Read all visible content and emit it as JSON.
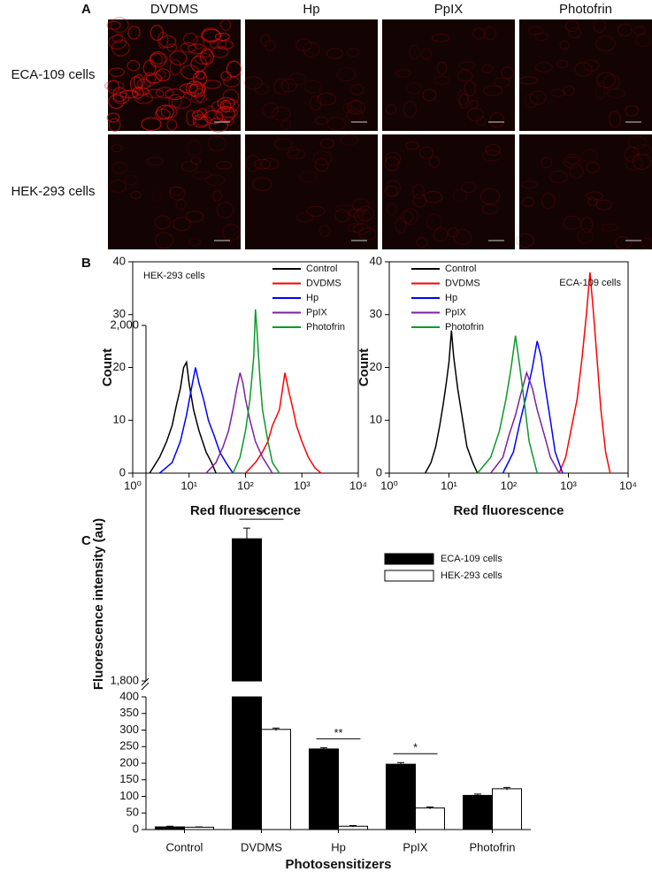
{
  "panel_labels": {
    "a": "A",
    "b": "B",
    "c": "C"
  },
  "panel_a": {
    "columns": [
      "DVDMS",
      "Hp",
      "PpIX",
      "Photofrin"
    ],
    "rows": [
      "ECA-109 cells",
      "HEK-293 cells"
    ]
  },
  "chart_data": [
    {
      "type": "line",
      "annotation": "HEK-293 cells",
      "xlabel": "Red fluorescence",
      "ylabel": "Count",
      "xscale": "log",
      "legend": "upper right",
      "xlim": [
        1,
        10000
      ],
      "ylim": [
        0,
        40
      ],
      "xticks": [
        {
          "value": 1,
          "label": "10⁰"
        },
        {
          "value": 10,
          "label": "10¹"
        },
        {
          "value": 100,
          "label": "10²"
        },
        {
          "value": 1000,
          "label": "10³"
        },
        {
          "value": 10000,
          "label": "10⁴"
        }
      ],
      "yticks": [
        0,
        10,
        20,
        30,
        40
      ],
      "series": [
        {
          "name": "Control",
          "color": "#000000",
          "x": [
            2,
            3,
            4,
            5,
            6,
            7,
            8,
            9,
            10,
            12,
            15,
            20,
            25,
            30
          ],
          "values": [
            0,
            3,
            6,
            9,
            13,
            16,
            20,
            21,
            17,
            12,
            8,
            4,
            2,
            0
          ]
        },
        {
          "name": "DVDMS",
          "color": "#ff0000",
          "x": [
            100,
            150,
            200,
            250,
            300,
            400,
            500,
            600,
            700,
            800,
            1000,
            1300,
            1700,
            2200
          ],
          "values": [
            0,
            2,
            4,
            6,
            9,
            12,
            19,
            15,
            12,
            9,
            6,
            3,
            1,
            0
          ]
        },
        {
          "name": "Hp",
          "color": "#0000ff",
          "x": [
            3,
            5,
            7,
            9,
            11,
            13,
            15,
            18,
            22,
            28,
            35,
            45,
            60
          ],
          "values": [
            0,
            2,
            6,
            11,
            16,
            20,
            17,
            14,
            10,
            7,
            4,
            2,
            0
          ]
        },
        {
          "name": "PpIX",
          "color": "#7f1fa0",
          "x": [
            20,
            30,
            40,
            50,
            60,
            70,
            80,
            90,
            100,
            120,
            150,
            200,
            300
          ],
          "values": [
            0,
            2,
            5,
            8,
            12,
            16,
            19,
            17,
            14,
            10,
            6,
            3,
            0
          ]
        },
        {
          "name": "Photofrin",
          "color": "#0a9a2a",
          "x": [
            60,
            80,
            100,
            120,
            140,
            150,
            160,
            180,
            200,
            250,
            300,
            400
          ],
          "values": [
            0,
            3,
            8,
            14,
            22,
            31,
            27,
            18,
            12,
            6,
            2,
            0
          ]
        }
      ]
    },
    {
      "type": "line",
      "annotation": "ECA-109 cells",
      "xlabel": "Red fluorescence",
      "ylabel": "Count",
      "xscale": "log",
      "legend": "upper left",
      "xlim": [
        1,
        10000
      ],
      "ylim": [
        0,
        40
      ],
      "xticks": [
        {
          "value": 1,
          "label": "10⁰"
        },
        {
          "value": 10,
          "label": "10¹"
        },
        {
          "value": 100,
          "label": "10²"
        },
        {
          "value": 1000,
          "label": "10³"
        },
        {
          "value": 10000,
          "label": "10⁴"
        }
      ],
      "yticks": [
        0,
        10,
        20,
        30,
        40
      ],
      "series": [
        {
          "name": "Control",
          "color": "#000000",
          "x": [
            4,
            5,
            6,
            7,
            8,
            9,
            10,
            11,
            12,
            14,
            17,
            20,
            25,
            30
          ],
          "values": [
            0,
            2,
            5,
            9,
            13,
            17,
            21,
            27,
            22,
            16,
            10,
            5,
            2,
            0
          ]
        },
        {
          "name": "DVDMS",
          "color": "#ff0000",
          "x": [
            700,
            900,
            1100,
            1400,
            1700,
            2000,
            2300,
            2600,
            3000,
            3500,
            4200,
            5000
          ],
          "values": [
            0,
            3,
            8,
            14,
            22,
            30,
            38,
            31,
            22,
            12,
            4,
            0
          ]
        },
        {
          "name": "Hp",
          "color": "#0000ff",
          "x": [
            80,
            120,
            150,
            200,
            250,
            300,
            350,
            400,
            500,
            600,
            800
          ],
          "values": [
            0,
            4,
            9,
            15,
            20,
            25,
            22,
            17,
            10,
            4,
            0
          ]
        },
        {
          "name": "PpIX",
          "color": "#7f1fa0",
          "x": [
            50,
            80,
            100,
            130,
            160,
            200,
            250,
            300,
            400,
            500,
            700
          ],
          "values": [
            0,
            3,
            7,
            11,
            15,
            19,
            16,
            12,
            7,
            3,
            0
          ]
        },
        {
          "name": "Photofrin",
          "color": "#0a9a2a",
          "x": [
            30,
            50,
            70,
            90,
            110,
            130,
            150,
            180,
            220,
            300
          ],
          "values": [
            0,
            3,
            8,
            14,
            20,
            26,
            21,
            14,
            6,
            0
          ]
        }
      ]
    },
    {
      "type": "bar",
      "xlabel": "Photosensitizers",
      "ylabel": "Fluorescence intensity (au)",
      "legend": "upper right",
      "categories": [
        "Control",
        "DVDMS",
        "Hp",
        "PpIX",
        "Photofrin"
      ],
      "ylim": [
        0,
        2000
      ],
      "y_break": [
        400,
        1800
      ],
      "yticks": [
        0,
        50,
        100,
        150,
        200,
        250,
        300,
        350,
        400,
        {
          "value": 1800,
          "label": "1,800"
        },
        {
          "value": 2000,
          "label": "2,000"
        }
      ],
      "significance": [
        null,
        "**",
        "**",
        "*",
        null
      ],
      "series": [
        {
          "name": "ECA-109 cells",
          "color": "#000000",
          "values": [
            8,
            1880,
            243,
            197,
            103
          ],
          "errors": [
            2,
            6,
            4,
            5,
            4
          ]
        },
        {
          "name": "HEK-293 cells",
          "color": "#ffffff",
          "values": [
            7,
            302,
            10,
            65,
            123
          ],
          "errors": [
            1,
            4,
            2,
            3,
            4
          ]
        }
      ]
    }
  ]
}
